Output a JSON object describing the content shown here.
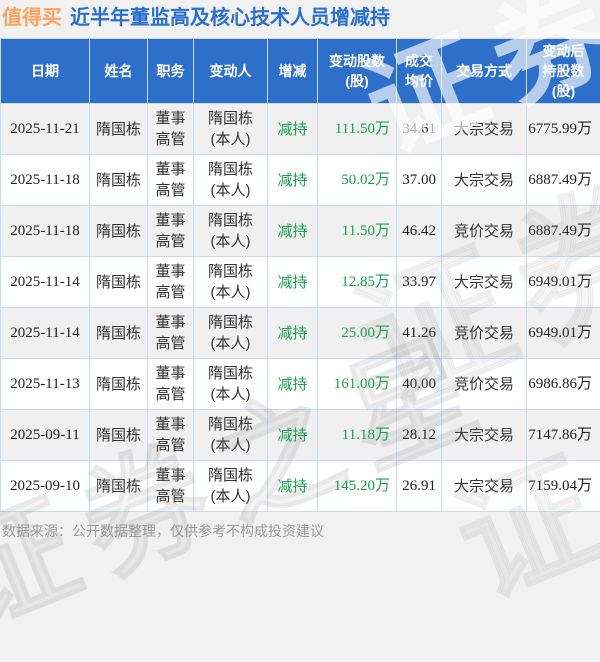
{
  "header": {
    "stock_name": "值得买",
    "title": "近半年董监高及核心技术人员增减持"
  },
  "footer": {
    "note": "数据来源：公开数据整理，仅供参考不构成投资建议"
  },
  "watermark": {
    "text": "证券之星"
  },
  "colors": {
    "orange": "#ffa05c",
    "title_blue": "#2a6fd0",
    "header_bg": "#2e6fc9",
    "border": "#c8dbf0",
    "green": "#18a24c"
  },
  "chart_data": {
    "type": "table",
    "title": "值得买 近半年董监高及核心技术人员增减持",
    "columns": [
      "日期",
      "姓名",
      "职务",
      "变动人",
      "增减",
      "变动股数\n(股)",
      "成交\n均价",
      "交易方式",
      "变动后\n持股数\n(股)"
    ],
    "rows": [
      {
        "date": "2025-11-21",
        "name": "隋国栋",
        "position": "董事\n高管",
        "changer": "隋国栋\n(本人)",
        "direction": "减持",
        "shares": "111.50万",
        "price": "34.61",
        "method": "大宗交易",
        "after": "6775.99万"
      },
      {
        "date": "2025-11-18",
        "name": "隋国栋",
        "position": "董事\n高管",
        "changer": "隋国栋\n(本人)",
        "direction": "减持",
        "shares": "50.02万",
        "price": "37.00",
        "method": "大宗交易",
        "after": "6887.49万"
      },
      {
        "date": "2025-11-18",
        "name": "隋国栋",
        "position": "董事\n高管",
        "changer": "隋国栋\n(本人)",
        "direction": "减持",
        "shares": "11.50万",
        "price": "46.42",
        "method": "竞价交易",
        "after": "6887.49万"
      },
      {
        "date": "2025-11-14",
        "name": "隋国栋",
        "position": "董事\n高管",
        "changer": "隋国栋\n(本人)",
        "direction": "减持",
        "shares": "12.85万",
        "price": "33.97",
        "method": "大宗交易",
        "after": "6949.01万"
      },
      {
        "date": "2025-11-14",
        "name": "隋国栋",
        "position": "董事\n高管",
        "changer": "隋国栋\n(本人)",
        "direction": "减持",
        "shares": "25.00万",
        "price": "41.26",
        "method": "竞价交易",
        "after": "6949.01万"
      },
      {
        "date": "2025-11-13",
        "name": "隋国栋",
        "position": "董事\n高管",
        "changer": "隋国栋\n(本人)",
        "direction": "减持",
        "shares": "161.00万",
        "price": "40.00",
        "method": "竞价交易",
        "after": "6986.86万"
      },
      {
        "date": "2025-09-11",
        "name": "隋国栋",
        "position": "董事\n高管",
        "changer": "隋国栋\n(本人)",
        "direction": "减持",
        "shares": "11.18万",
        "price": "28.12",
        "method": "大宗交易",
        "after": "7147.86万"
      },
      {
        "date": "2025-09-10",
        "name": "隋国栋",
        "position": "董事\n高管",
        "changer": "隋国栋\n(本人)",
        "direction": "减持",
        "shares": "145.20万",
        "price": "26.91",
        "method": "大宗交易",
        "after": "7159.04万"
      }
    ]
  }
}
